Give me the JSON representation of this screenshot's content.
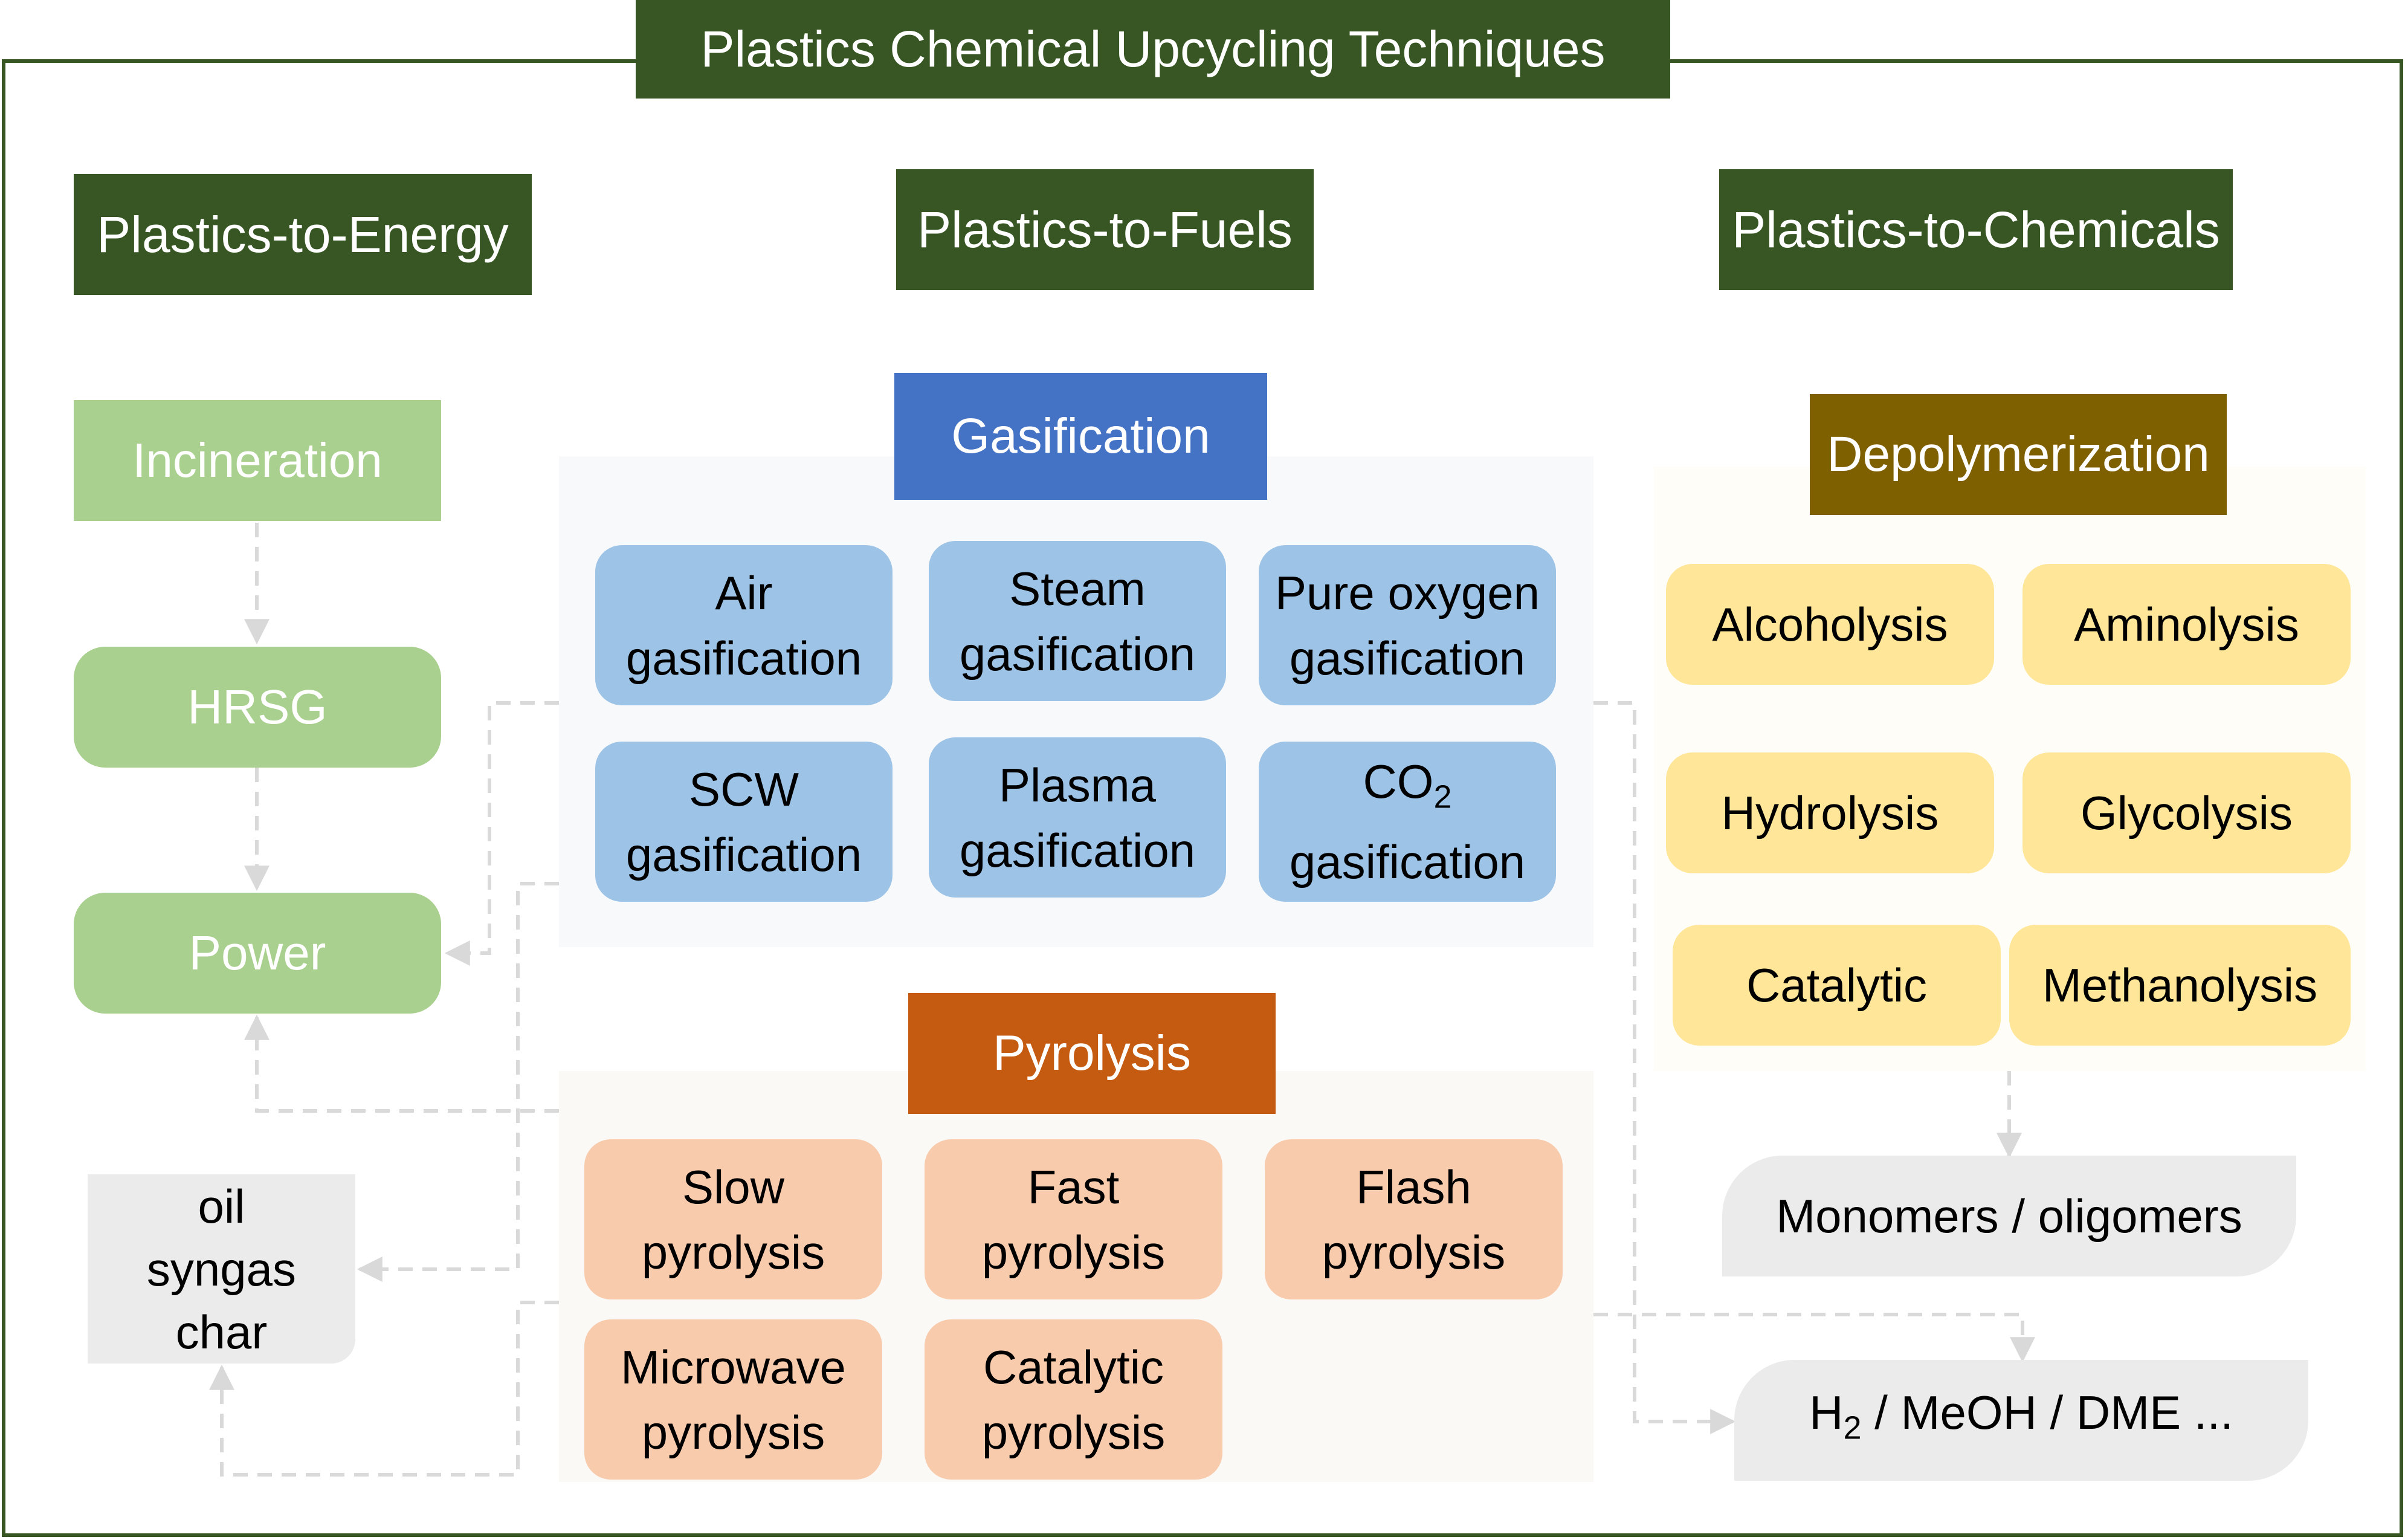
{
  "title": "Plastics Chemical Upcycling Techniques",
  "columns": {
    "energy": "Plastics-to-Energy",
    "fuels": "Plastics-to-Fuels",
    "chemicals": "Plastics-to-Chemicals"
  },
  "energy": {
    "incineration": "Incineration",
    "hrsg": "HRSG",
    "power": "Power",
    "products": [
      "oil",
      "syngas",
      "char"
    ]
  },
  "gasification": {
    "label": "Gasification",
    "items": [
      [
        "Air",
        "gasification"
      ],
      [
        "Steam",
        "gasification"
      ],
      [
        "Pure oxygen",
        "gasification"
      ],
      [
        "SCW",
        "gasification"
      ],
      [
        "Plasma",
        "gasification"
      ],
      [
        "CO",
        "2",
        "gasification"
      ]
    ]
  },
  "pyrolysis": {
    "label": "Pyrolysis",
    "items": [
      [
        "Slow",
        "pyrolysis"
      ],
      [
        "Fast",
        "pyrolysis"
      ],
      [
        "Flash",
        "pyrolysis"
      ],
      [
        "Microwave",
        "pyrolysis"
      ],
      [
        "Catalytic",
        "pyrolysis"
      ]
    ]
  },
  "depolymerization": {
    "label": "Depolymerization",
    "items": [
      "Alcoholysis",
      "Aminolysis",
      "Hydrolysis",
      "Glycolysis",
      "Catalytic",
      "Methanolysis"
    ]
  },
  "outputs": {
    "monomers": "Monomers / oligomers",
    "h2_prefix": "H",
    "h2_sub": "2",
    "h2_rest": " / MeOH / DME ..."
  },
  "colors": {
    "dark_green": "#375623",
    "light_green": "#a9d08e",
    "gasification": "#4472c4",
    "gasification_items": "#9dc3e6",
    "pyrolysis": "#c55a11",
    "pyrolysis_items": "#f8cbad",
    "depolymerization": "#7f6000",
    "depolymerization_items": "#ffe699",
    "output_gray": "#ebebeb",
    "connector": "#d9d9d9"
  }
}
